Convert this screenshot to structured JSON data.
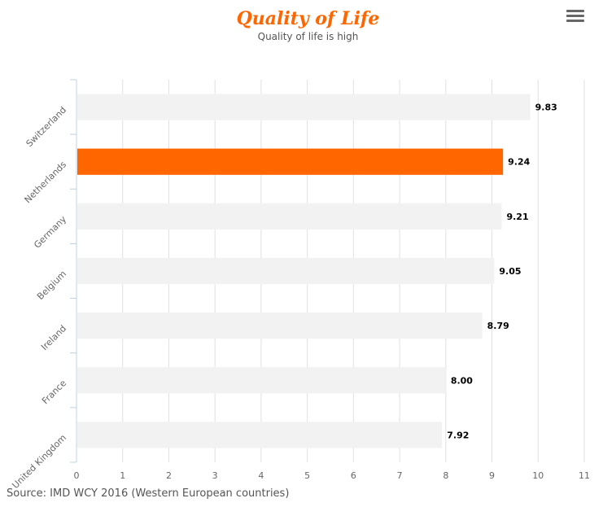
{
  "chart_data": {
    "type": "bar",
    "orientation": "horizontal",
    "title": "Quality of Life",
    "subtitle": "Quality of life is high",
    "categories": [
      "Switzerland",
      "Netherlands",
      "Germany",
      "Belgium",
      "Ireland",
      "France",
      "United Kingdom"
    ],
    "values": [
      9.83,
      9.24,
      9.21,
      9.05,
      8.79,
      8.0,
      7.92
    ],
    "data_labels": [
      "9.83",
      "9.24",
      "9.21",
      "9.05",
      "8.79",
      "8.00",
      "7.92"
    ],
    "highlight": "Netherlands",
    "xlim": [
      0,
      11
    ],
    "x_ticks": [
      "0",
      "1",
      "2",
      "3",
      "4",
      "5",
      "6",
      "7",
      "8",
      "9",
      "10",
      "11"
    ],
    "grid": true,
    "colors": {
      "bar": "#f2f2f2",
      "highlight": "#ff6600",
      "grid": "#e0e0e0",
      "title": "#ff6600"
    }
  },
  "source": "Source: IMD WCY 2016 (Western European countries)",
  "menu_icon": "hamburger-menu-icon"
}
